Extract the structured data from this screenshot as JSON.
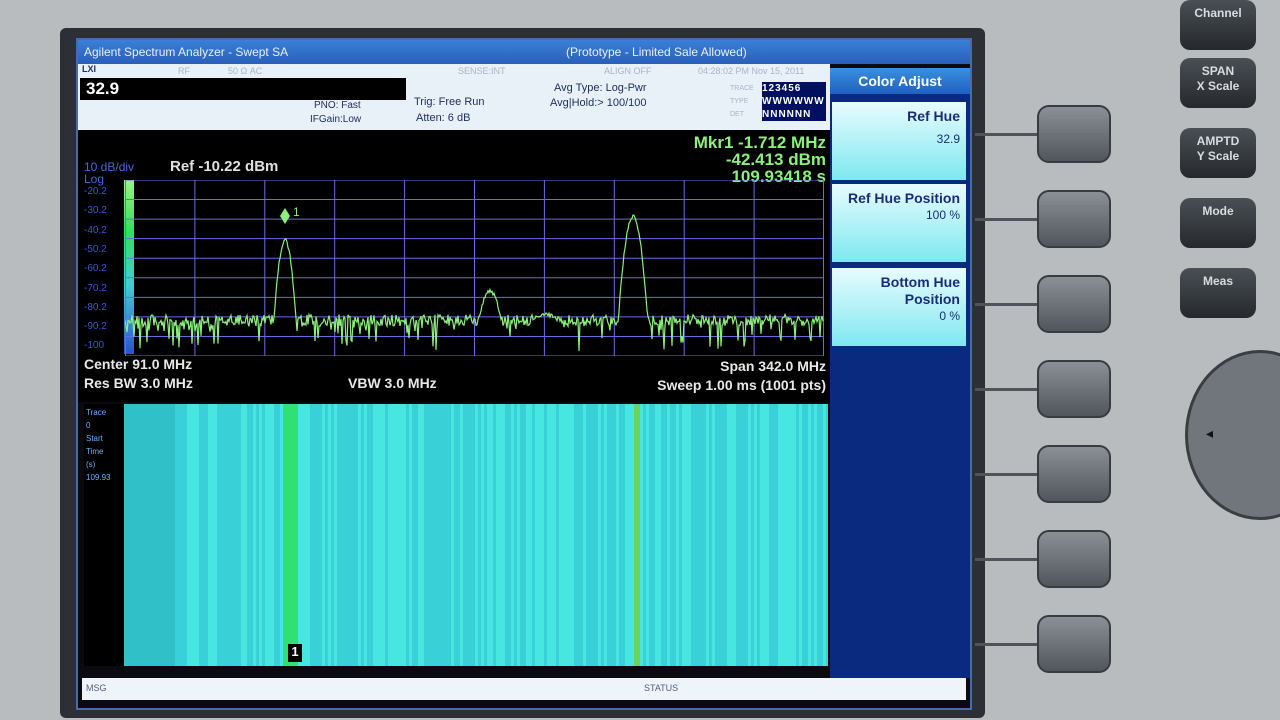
{
  "window": {
    "title": "Agilent Spectrum Analyzer - Swept SA",
    "subtitle": "(Prototype - Limited Sale Allowed)"
  },
  "status": {
    "mode_icon": "LXI",
    "rf": "RF",
    "ac": "50 Ω  AC",
    "sense": "SENSE:INT",
    "align": "ALIGN OFF",
    "datetime": "04:28:02 PM Nov 15, 2011",
    "entry_value": "32.9",
    "pno": "PNO: Fast",
    "ifgain": "IFGain:Low",
    "trig": "Trig: Free Run",
    "atten": "Atten: 6 dB",
    "avg_type": "Avg Type: Log-Pwr",
    "avg_hold": "Avg|Hold:> 100/100",
    "trace_label": "TRACE",
    "type_label": "TYPE",
    "det_label": "DET",
    "traces": "123456",
    "types": "WWWWWW",
    "dets": "NNNNNN"
  },
  "graph": {
    "scale": "10 dB/div",
    "log": "Log",
    "ref": "Ref -10.22 dBm",
    "marker_line1": "Mkr1 -1.712 MHz",
    "marker_line2": "-42.413 dBm",
    "marker_line3": "109.93418 s",
    "marker_label": "1",
    "y_labels": [
      "-20.2",
      "-30.2",
      "-40.2",
      "-50.2",
      "-60.2",
      "-70.2",
      "-80.2",
      "-90.2",
      "-100"
    ],
    "center": "Center 91.0 MHz",
    "res_bw": "Res BW 3.0 MHz",
    "vbw": "VBW 3.0 MHz",
    "span": "Span 342.0 MHz",
    "sweep": "Sweep  1.00 ms (1001 pts)"
  },
  "spectrogram": {
    "label": [
      "Trace",
      "0",
      "Start",
      "Time",
      "(s)",
      "109.93"
    ],
    "marker_label": "1"
  },
  "bottom": {
    "msg": "MSG",
    "status": "STATUS"
  },
  "softkeys": {
    "header": "Color Adjust",
    "items": [
      {
        "label": "Ref Hue",
        "value": "32.9"
      },
      {
        "label": "Ref Hue Position",
        "value": "100 %"
      },
      {
        "label": "Bottom Hue Position",
        "value": "0 %"
      }
    ]
  },
  "hardware": {
    "buttons": [
      {
        "line1": "Channel",
        "line2": ""
      },
      {
        "line1": "SPAN",
        "line2": "X Scale"
      },
      {
        "line1": "AMPTD",
        "line2": "Y Scale"
      },
      {
        "line1": "Mode",
        "line2": ""
      },
      {
        "line1": "Meas",
        "line2": ""
      }
    ]
  },
  "colors": {
    "trace": "#8cf07c",
    "grid": "#6a6ae8",
    "softkey_bg": "#7ee8f0",
    "title_bar": "#2a5fb8"
  }
}
